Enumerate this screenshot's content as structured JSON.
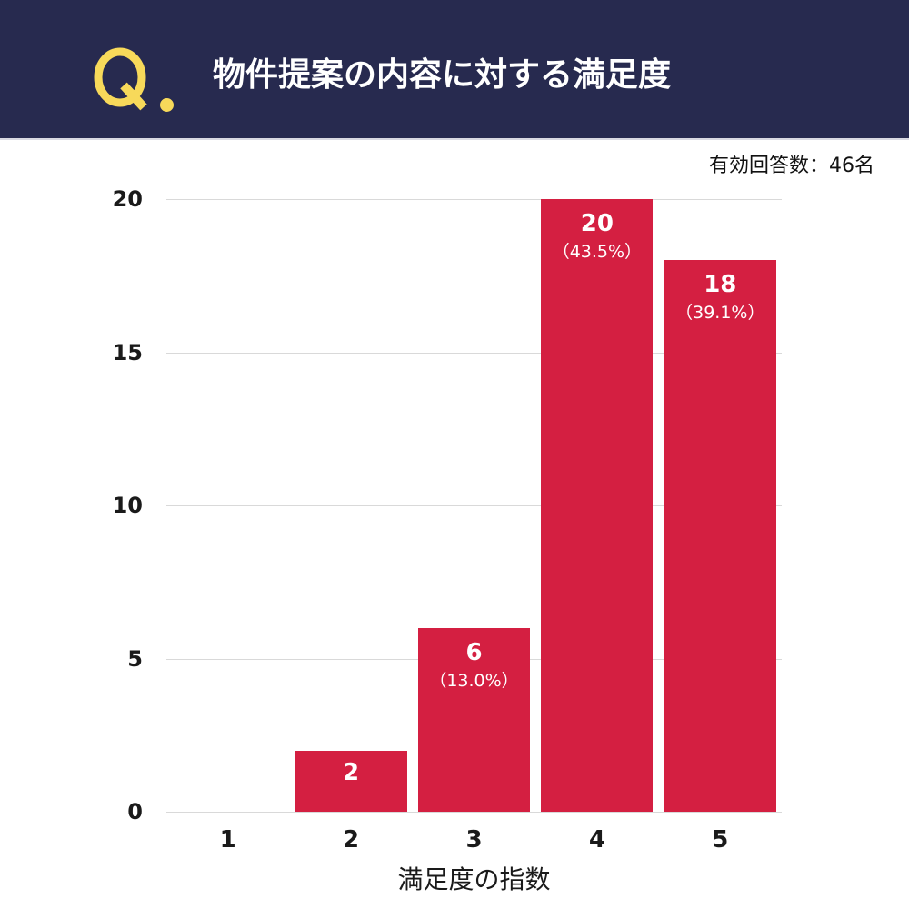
{
  "header": {
    "q_mark": "Q",
    "title": "物件提案の内容に対する満足度",
    "background_color": "#272a4f",
    "accent_color": "#f7d95a"
  },
  "respondents": "有効回答数：46名",
  "bar_color": "#d41f41",
  "chart_data": {
    "type": "bar",
    "title": "物件提案の内容に対する満足度",
    "subtitle": "有効回答数：46名",
    "xlabel": "満足度の指数",
    "ylabel": "",
    "categories": [
      "1",
      "2",
      "3",
      "4",
      "5"
    ],
    "values": [
      0,
      2,
      6,
      20,
      18
    ],
    "value_labels": [
      "",
      "2",
      "6",
      "20",
      "18"
    ],
    "percent_labels": [
      "",
      "",
      "（13.0%）",
      "（43.5%）",
      "（39.1%）"
    ],
    "yticks": [
      0,
      5,
      10,
      15,
      20
    ],
    "ylim": [
      0,
      20
    ],
    "grid": true,
    "legend": null
  }
}
